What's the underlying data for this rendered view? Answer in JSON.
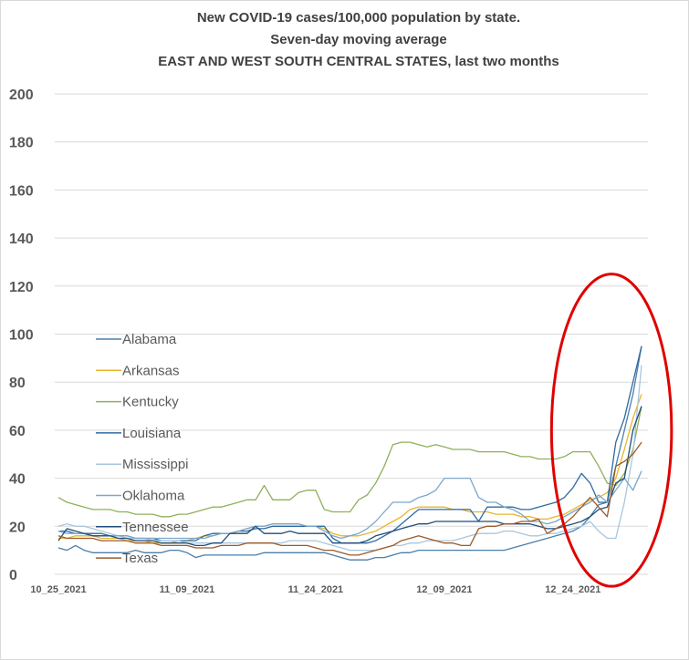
{
  "chart_data": {
    "type": "line",
    "title": [
      "New COVID-19 cases/100,000 population by state.",
      "Seven-day moving average",
      "EAST AND WEST SOUTH CENTRAL STATES, last two months"
    ],
    "xlabel": "",
    "ylabel": "",
    "ylim": [
      0,
      200
    ],
    "yticks": [
      0,
      20,
      40,
      60,
      80,
      100,
      120,
      140,
      160,
      180,
      200
    ],
    "xtick_labels": [
      "10_25_2021",
      "11_09_2021",
      "11_24_2021",
      "12_09_2021",
      "12_24_2021"
    ],
    "xtick_positions": [
      0,
      15,
      30,
      45,
      60
    ],
    "x_count": 69,
    "grid": "horizontal",
    "legend_position": "left",
    "annotation": {
      "type": "ellipse",
      "color": "#e00000",
      "x_center": 64.5,
      "x_radius": 7.0,
      "y_center": 60,
      "y_radius": 65
    },
    "series": [
      {
        "name": "Alabama",
        "color": "#4a7eab",
        "values": [
          11,
          10,
          12,
          10,
          9,
          9,
          9,
          9,
          9,
          10,
          9,
          9,
          9,
          10,
          10,
          9,
          7,
          8,
          8,
          8,
          8,
          8,
          8,
          8,
          9,
          9,
          9,
          9,
          9,
          9,
          9,
          9,
          8,
          7,
          6,
          6,
          6,
          7,
          7,
          8,
          9,
          9,
          10,
          10,
          10,
          10,
          10,
          10,
          10,
          10,
          10,
          10,
          10,
          11,
          12,
          13,
          14,
          15,
          16,
          17,
          18,
          20,
          24,
          29,
          30,
          45,
          60,
          75,
          95
        ]
      },
      {
        "name": "Arkansas",
        "color": "#e8b52a",
        "values": [
          15,
          15,
          16,
          16,
          16,
          15,
          15,
          15,
          14,
          14,
          14,
          13,
          13,
          13,
          14,
          14,
          15,
          16,
          16,
          17,
          17,
          18,
          19,
          20,
          20,
          21,
          21,
          21,
          21,
          20,
          20,
          19,
          17,
          16,
          16,
          16,
          17,
          18,
          20,
          22,
          24,
          27,
          28,
          28,
          28,
          28,
          27,
          27,
          26,
          26,
          26,
          25,
          25,
          25,
          24,
          24,
          23,
          23,
          24,
          25,
          27,
          29,
          31,
          32,
          34,
          40,
          52,
          65,
          75
        ]
      },
      {
        "name": "Kentucky",
        "color": "#8fb05a",
        "values": [
          32,
          30,
          29,
          28,
          27,
          27,
          27,
          26,
          26,
          25,
          25,
          25,
          24,
          24,
          25,
          25,
          26,
          27,
          28,
          28,
          29,
          30,
          31,
          31,
          37,
          31,
          31,
          31,
          34,
          35,
          35,
          27,
          26,
          26,
          26,
          31,
          33,
          38,
          45,
          54,
          55,
          55,
          54,
          53,
          54,
          53,
          52,
          52,
          52,
          51,
          51,
          51,
          51,
          50,
          49,
          49,
          48,
          48,
          48,
          49,
          51,
          51,
          51,
          45,
          38,
          37,
          42,
          52,
          70
        ]
      },
      {
        "name": "Louisiana",
        "color": "#2e6aa0",
        "values": [
          18,
          18,
          17,
          17,
          17,
          17,
          16,
          16,
          16,
          15,
          15,
          15,
          14,
          14,
          14,
          14,
          14,
          16,
          17,
          17,
          17,
          18,
          18,
          19,
          19,
          20,
          20,
          20,
          20,
          20,
          20,
          20,
          15,
          13,
          13,
          13,
          13,
          14,
          16,
          18,
          21,
          24,
          27,
          27,
          27,
          27,
          27,
          27,
          27,
          22,
          28,
          28,
          28,
          28,
          27,
          27,
          28,
          29,
          30,
          32,
          36,
          42,
          38,
          30,
          30,
          55,
          65,
          80,
          95
        ]
      },
      {
        "name": "Mississippi",
        "color": "#a8c6dd",
        "values": [
          20,
          21,
          20,
          20,
          19,
          18,
          17,
          16,
          15,
          15,
          15,
          14,
          14,
          14,
          14,
          13,
          13,
          13,
          13,
          13,
          13,
          13,
          13,
          13,
          13,
          13,
          13,
          14,
          14,
          14,
          14,
          13,
          12,
          11,
          10,
          10,
          10,
          10,
          11,
          12,
          12,
          13,
          13,
          14,
          14,
          14,
          14,
          15,
          16,
          17,
          17,
          17,
          18,
          18,
          17,
          16,
          16,
          17,
          17,
          18,
          19,
          20,
          22,
          18,
          15,
          15,
          30,
          50,
          87
        ]
      },
      {
        "name": "Oklahoma",
        "color": "#7aa7cc",
        "values": [
          18,
          17,
          17,
          17,
          16,
          16,
          16,
          16,
          16,
          15,
          15,
          15,
          15,
          15,
          15,
          15,
          15,
          15,
          16,
          17,
          17,
          18,
          19,
          20,
          20,
          21,
          21,
          21,
          21,
          20,
          20,
          18,
          16,
          15,
          16,
          17,
          19,
          22,
          26,
          30,
          30,
          30,
          32,
          33,
          35,
          40,
          40,
          40,
          40,
          32,
          30,
          30,
          28,
          27,
          25,
          22,
          22,
          21,
          22,
          24,
          26,
          28,
          30,
          33,
          30,
          35,
          40,
          35,
          43
        ]
      },
      {
        "name": "Tennessee",
        "color": "#1f4e79",
        "values": [
          14,
          19,
          18,
          17,
          16,
          16,
          16,
          15,
          15,
          14,
          14,
          14,
          13,
          13,
          13,
          13,
          12,
          12,
          13,
          13,
          17,
          17,
          17,
          20,
          17,
          17,
          17,
          18,
          17,
          17,
          17,
          17,
          13,
          13,
          13,
          13,
          14,
          16,
          17,
          18,
          19,
          20,
          21,
          21,
          22,
          22,
          22,
          22,
          22,
          22,
          22,
          22,
          21,
          21,
          21,
          21,
          20,
          19,
          19,
          20,
          21,
          22,
          24,
          27,
          28,
          38,
          40,
          60,
          70
        ]
      },
      {
        "name": "Texas",
        "color": "#9c5a2a",
        "values": [
          16,
          15,
          15,
          15,
          15,
          14,
          14,
          14,
          14,
          13,
          13,
          13,
          12,
          12,
          12,
          12,
          11,
          11,
          11,
          12,
          12,
          12,
          13,
          13,
          13,
          13,
          12,
          12,
          12,
          12,
          11,
          10,
          10,
          9,
          8,
          8,
          9,
          10,
          11,
          12,
          14,
          15,
          16,
          15,
          14,
          13,
          13,
          12,
          12,
          19,
          20,
          20,
          21,
          21,
          22,
          22,
          23,
          17,
          19,
          21,
          24,
          28,
          32,
          28,
          24,
          45,
          47,
          50,
          55
        ]
      }
    ]
  }
}
